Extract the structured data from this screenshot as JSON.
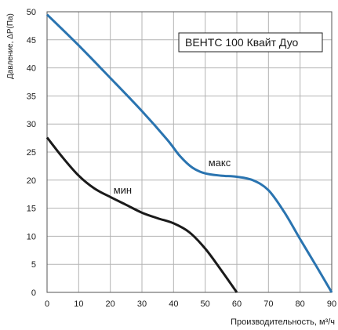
{
  "chart_data": {
    "type": "line",
    "title": "",
    "legend_box": "ВЕНТС 100 Квайт Дуо",
    "legend_placement": "top-right",
    "xlabel": "Производительность, м³/ч",
    "ylabel": "Давление, ΔР(Па)",
    "xlim": [
      0,
      90
    ],
    "ylim": [
      0,
      50
    ],
    "x_ticks": [
      0,
      10,
      20,
      30,
      40,
      50,
      60,
      70,
      80,
      90
    ],
    "y_ticks": [
      0,
      5,
      10,
      15,
      20,
      25,
      30,
      35,
      40,
      45,
      50
    ],
    "grid": true,
    "series": [
      {
        "name": "макс",
        "color": "#2a74b0",
        "points": [
          [
            0,
            49.5
          ],
          [
            10,
            44
          ],
          [
            20,
            38.2
          ],
          [
            30,
            32.3
          ],
          [
            38,
            27.2
          ],
          [
            42,
            24.3
          ],
          [
            46,
            22.2
          ],
          [
            50,
            21.2
          ],
          [
            55,
            20.8
          ],
          [
            60,
            20.6
          ],
          [
            65,
            20
          ],
          [
            70,
            18.2
          ],
          [
            75,
            14.3
          ],
          [
            80,
            9.5
          ],
          [
            85,
            4.8
          ],
          [
            90,
            0
          ]
        ]
      },
      {
        "name": "мин",
        "color": "#1a1a1a",
        "points": [
          [
            0,
            27.6
          ],
          [
            5,
            24
          ],
          [
            10,
            20.8
          ],
          [
            15,
            18.5
          ],
          [
            20,
            17
          ],
          [
            25,
            15.6
          ],
          [
            30,
            14.2
          ],
          [
            35,
            13.2
          ],
          [
            40,
            12.3
          ],
          [
            45,
            10.7
          ],
          [
            50,
            7.8
          ],
          [
            55,
            4
          ],
          [
            60,
            0
          ]
        ]
      }
    ]
  }
}
